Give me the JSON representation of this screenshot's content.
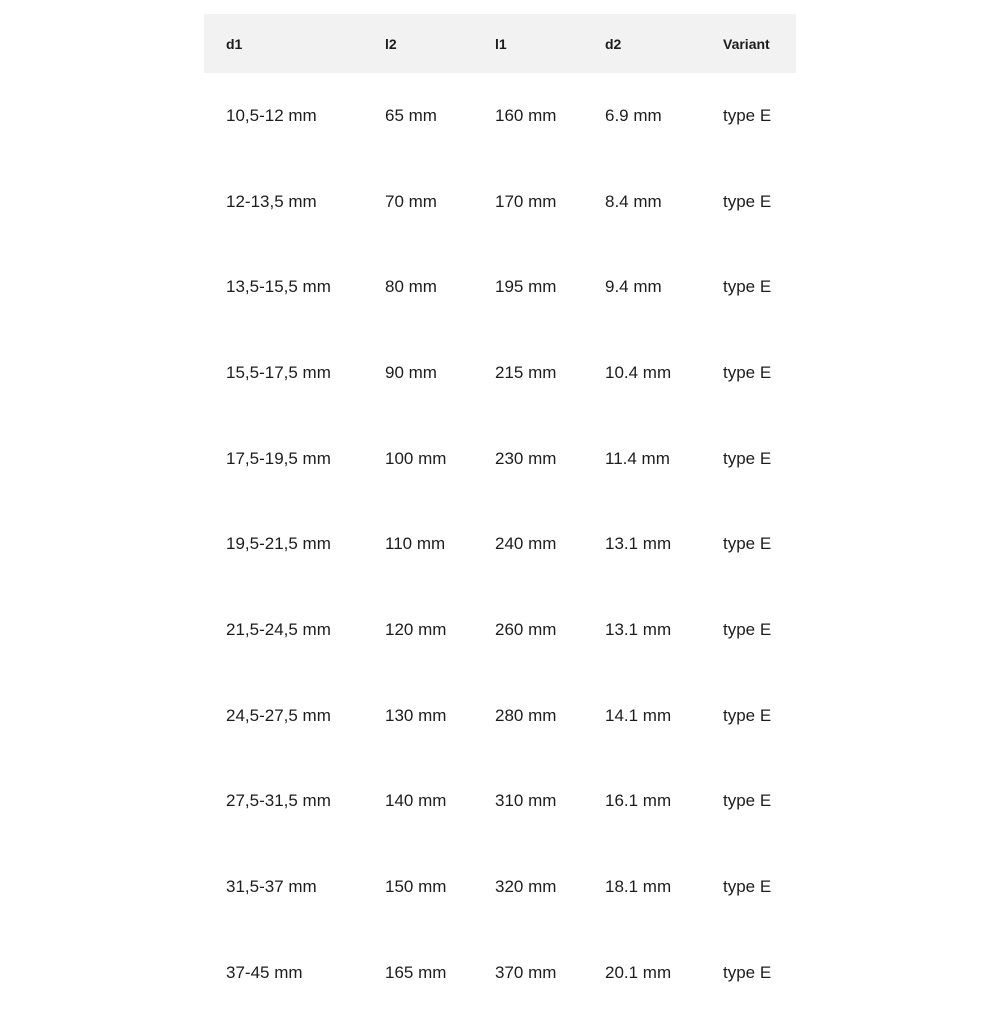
{
  "colors": {
    "page_bg": "#ffffff",
    "header_bg": "#f2f2f2",
    "text": "#1d1d1f"
  },
  "table": {
    "columns": [
      {
        "key": "d1",
        "label": "d1"
      },
      {
        "key": "l2",
        "label": "l2"
      },
      {
        "key": "l1",
        "label": "l1"
      },
      {
        "key": "d2",
        "label": "d2"
      },
      {
        "key": "variant",
        "label": "Variant"
      }
    ],
    "rows": [
      {
        "d1": "10,5-12 mm",
        "l2": "65 mm",
        "l1": "160 mm",
        "d2": "6.9 mm",
        "variant": "type E"
      },
      {
        "d1": "12-13,5 mm",
        "l2": "70 mm",
        "l1": "170 mm",
        "d2": "8.4 mm",
        "variant": "type E"
      },
      {
        "d1": "13,5-15,5 mm",
        "l2": "80 mm",
        "l1": "195 mm",
        "d2": "9.4 mm",
        "variant": "type E"
      },
      {
        "d1": "15,5-17,5 mm",
        "l2": "90 mm",
        "l1": "215 mm",
        "d2": "10.4 mm",
        "variant": "type E"
      },
      {
        "d1": "17,5-19,5 mm",
        "l2": "100 mm",
        "l1": "230 mm",
        "d2": "11.4 mm",
        "variant": "type E"
      },
      {
        "d1": "19,5-21,5 mm",
        "l2": "110 mm",
        "l1": "240 mm",
        "d2": "13.1 mm",
        "variant": "type E"
      },
      {
        "d1": "21,5-24,5 mm",
        "l2": "120 mm",
        "l1": "260 mm",
        "d2": "13.1 mm",
        "variant": "type E"
      },
      {
        "d1": "24,5-27,5 mm",
        "l2": "130 mm",
        "l1": "280 mm",
        "d2": "14.1 mm",
        "variant": "type E"
      },
      {
        "d1": "27,5-31,5 mm",
        "l2": "140 mm",
        "l1": "310 mm",
        "d2": "16.1 mm",
        "variant": "type E"
      },
      {
        "d1": "31,5-37 mm",
        "l2": "150 mm",
        "l1": "320 mm",
        "d2": "18.1 mm",
        "variant": "type E"
      },
      {
        "d1": "37-45 mm",
        "l2": "165 mm",
        "l1": "370 mm",
        "d2": "20.1 mm",
        "variant": "type E"
      }
    ]
  }
}
